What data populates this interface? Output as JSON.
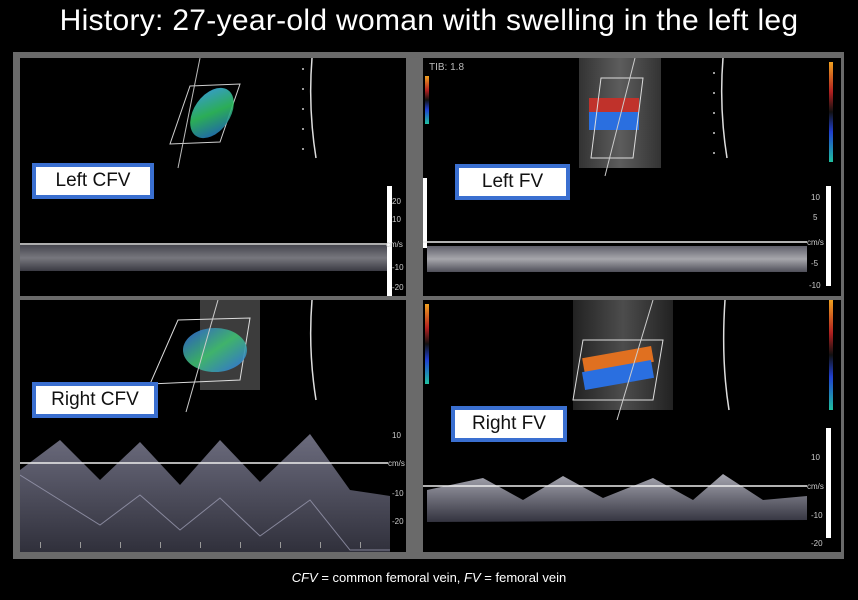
{
  "title": "History:  27-year-old woman with swelling in the left leg",
  "panels": {
    "left_cfv": {
      "label": "Left CFV",
      "scale": [
        "20",
        "10",
        "cm/s",
        "-10",
        "-20"
      ]
    },
    "left_fv": {
      "label": "Left FV",
      "tib": "TIB: 1.8",
      "scale": [
        "10",
        "5",
        "cm/s",
        "-5",
        "-10"
      ]
    },
    "right_cfv": {
      "label": "Right CFV",
      "scale": [
        "10",
        "cm/s",
        "-10",
        "-20"
      ]
    },
    "right_fv": {
      "label": "Right FV",
      "scale": [
        "10",
        "cm/s",
        "-10",
        "-20"
      ]
    }
  },
  "caption": {
    "abbr1": "CFV",
    "def1": " = common femoral vein, ",
    "abbr2": "FV",
    "def2": " = femoral vein"
  },
  "colors": {
    "frame": "#6a6a6a",
    "label_border": "#3a6fd0",
    "doppler_red": "#c0322b",
    "doppler_blue": "#2a6fe0"
  }
}
